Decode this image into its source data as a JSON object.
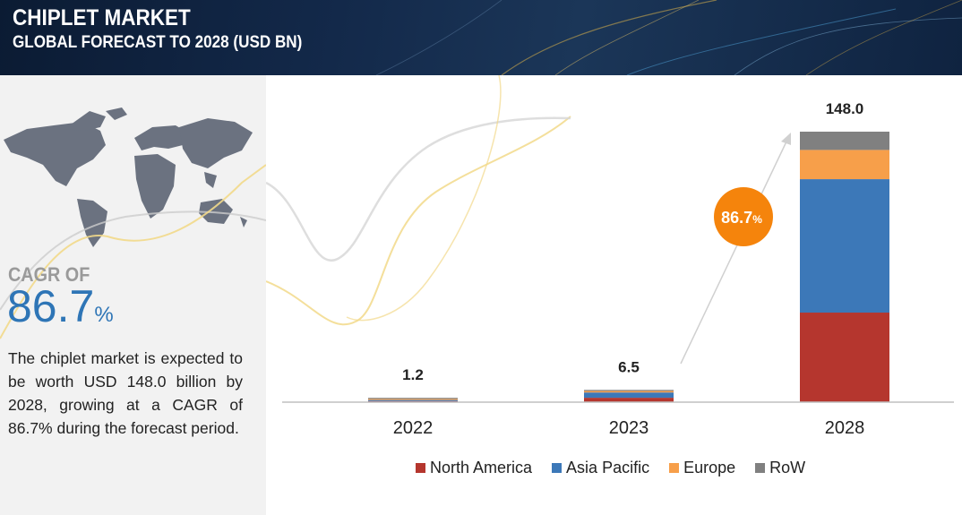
{
  "header": {
    "title": "CHIPLET MARKET",
    "subtitle": "GLOBAL FORECAST TO 2028 (USD BN)"
  },
  "left_panel": {
    "cagr_label": "CAGR OF",
    "cagr_value": "86.7",
    "cagr_unit": "%",
    "description": "The chiplet market is expected to be worth USD 148.0 billion by 2028, growing at a CAGR of 86.7% during the forecast period."
  },
  "growth_badge": {
    "value": "86.7",
    "unit": "%",
    "color": "#f5840c"
  },
  "chart_data": {
    "type": "bar",
    "stacked": true,
    "title": "CHIPLET MARKET GLOBAL FORECAST TO 2028 (USD BN)",
    "categories": [
      "2022",
      "2023",
      "2028"
    ],
    "totals": [
      1.2,
      6.5,
      148.0
    ],
    "total_labels": [
      "1.2",
      "6.5",
      "148.0"
    ],
    "series": [
      {
        "name": "North America",
        "color": "#b5362e",
        "values": [
          0.4,
          2.4,
          49.0
        ]
      },
      {
        "name": "Asia Pacific",
        "color": "#3c78b8",
        "values": [
          0.5,
          2.9,
          73.0
        ]
      },
      {
        "name": "Europe",
        "color": "#f79f4a",
        "values": [
          0.2,
          0.8,
          16.0
        ]
      },
      {
        "name": "RoW",
        "color": "#808080",
        "values": [
          0.1,
          0.4,
          10.0
        ]
      }
    ],
    "ylim": [
      0,
      148
    ],
    "xlabel": "",
    "ylabel": "",
    "legend_position": "bottom",
    "grid": false
  }
}
